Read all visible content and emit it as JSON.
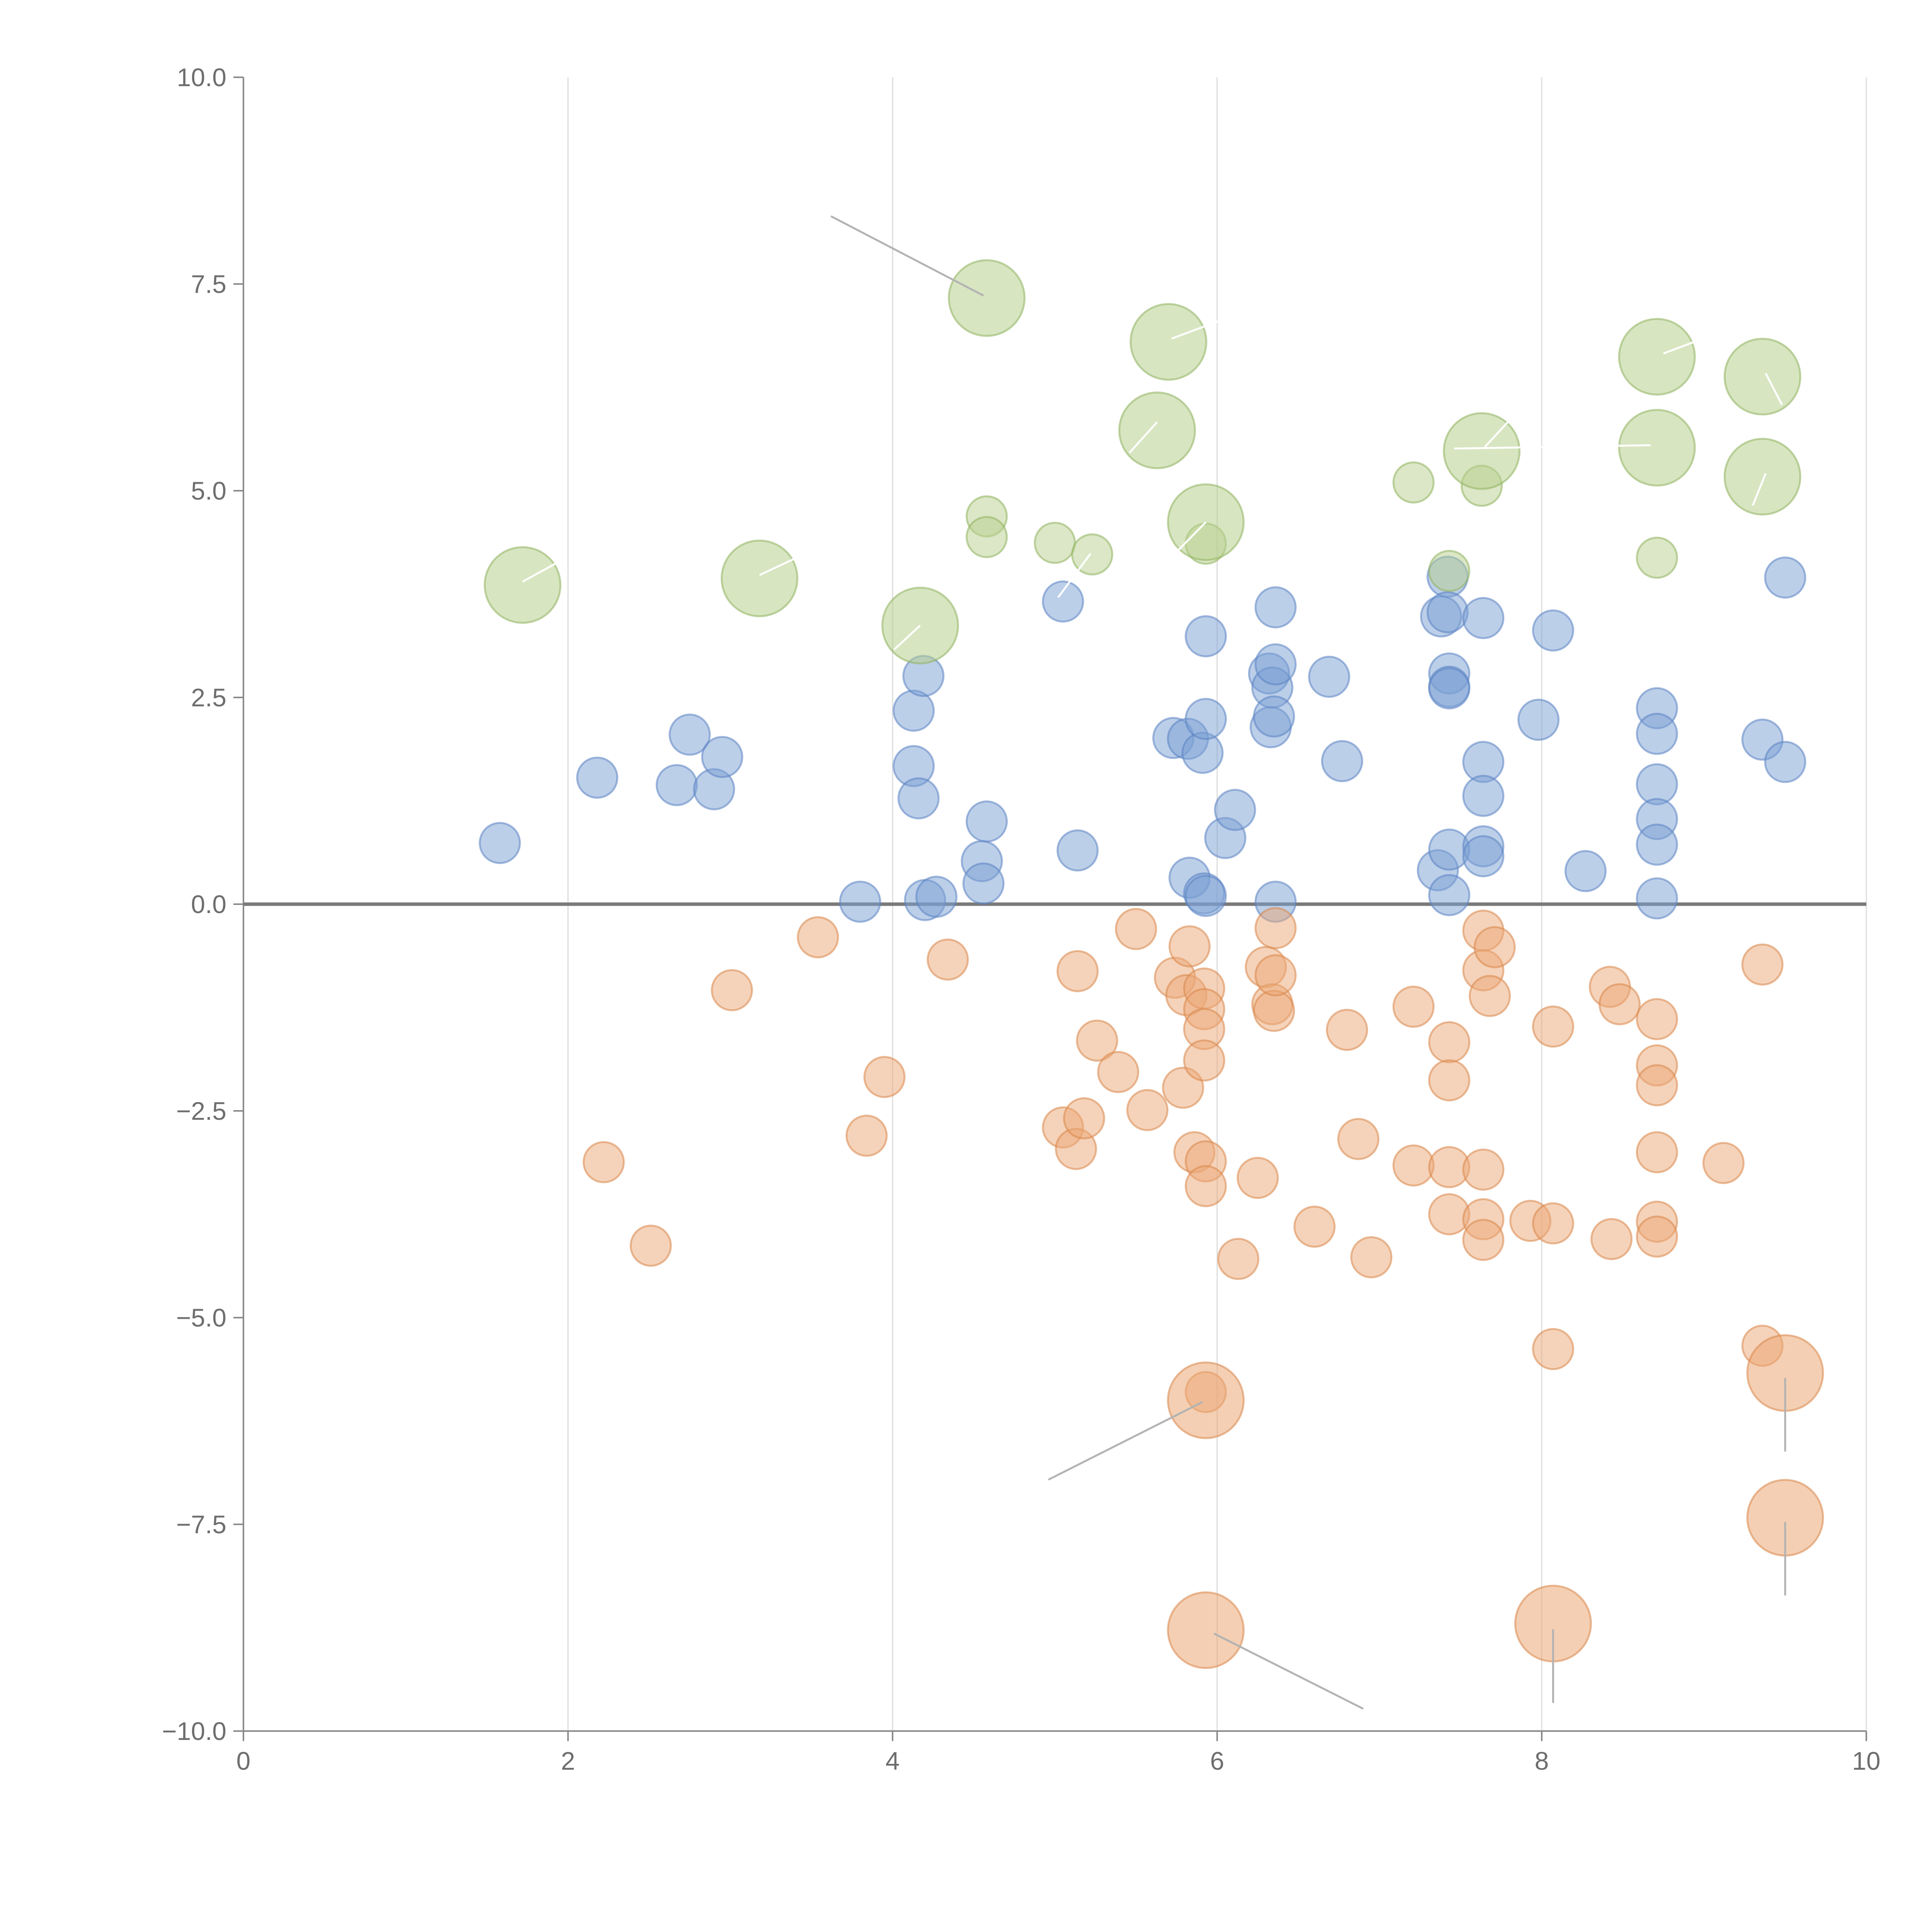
{
  "chart_data": {
    "type": "scatter",
    "title": "",
    "xlabel": "",
    "ylabel": "",
    "xlim": [
      0,
      10
    ],
    "ylim": [
      -10,
      10
    ],
    "grid": "vertical",
    "legend": "none",
    "x_ticks": [
      0,
      2,
      4,
      6,
      8,
      10
    ],
    "x_tick_labels": [
      "0",
      "2",
      "4",
      "6",
      "8",
      "10"
    ],
    "y_ticks": [
      10,
      7.5,
      5,
      2.5,
      0,
      -2.5,
      -5,
      -7.5,
      -10
    ],
    "y_tick_labels": [
      "10.0",
      "7.5",
      "5.0",
      "2.5",
      "0.0",
      "−2.5",
      "−5.0",
      "−7.5",
      "−10.0"
    ],
    "colors": {
      "blue": "#7aa0d4",
      "blue_stroke": "#5b83c2",
      "orange": "#eba775",
      "orange_stroke": "#d9864a",
      "green": "#b7d08e",
      "green_stroke": "#8fb35f",
      "leader_dark": "#b3b3b3",
      "leader_light": "#ffffff"
    },
    "series": [
      {
        "name": "blue",
        "points": [
          [
            1.58,
            0.74
          ],
          [
            2.18,
            1.53
          ],
          [
            2.67,
            1.44
          ],
          [
            2.75,
            2.05
          ],
          [
            2.9,
            1.39
          ],
          [
            2.95,
            1.78
          ],
          [
            3.8,
            0.03
          ],
          [
            4.13,
            2.34
          ],
          [
            4.13,
            1.67
          ],
          [
            4.16,
            1.28
          ],
          [
            4.19,
            2.76
          ],
          [
            4.2,
            0.05
          ],
          [
            4.27,
            0.09
          ],
          [
            4.55,
            0.52
          ],
          [
            4.56,
            0.25
          ],
          [
            4.58,
            1.0
          ],
          [
            5.05,
            3.66
          ],
          [
            5.14,
            0.65
          ],
          [
            5.73,
            2.01
          ],
          [
            5.82,
            2.0
          ],
          [
            5.83,
            0.32
          ],
          [
            5.91,
            1.83
          ],
          [
            5.92,
            0.13
          ],
          [
            5.93,
            0.1
          ],
          [
            5.93,
            3.24
          ],
          [
            5.93,
            2.24
          ],
          [
            6.05,
            0.8
          ],
          [
            6.11,
            1.14
          ],
          [
            6.32,
            2.79
          ],
          [
            6.33,
            2.14
          ],
          [
            6.34,
            2.62
          ],
          [
            6.35,
            2.27
          ],
          [
            6.36,
            2.9
          ],
          [
            6.36,
            0.03
          ],
          [
            6.36,
            3.59
          ],
          [
            6.69,
            2.75
          ],
          [
            6.77,
            1.73
          ],
          [
            7.36,
            0.41
          ],
          [
            7.38,
            3.48
          ],
          [
            7.42,
            3.96
          ],
          [
            7.42,
            3.53
          ],
          [
            7.43,
            2.79
          ],
          [
            7.43,
            2.63
          ],
          [
            7.43,
            2.61
          ],
          [
            7.43,
            0.66
          ],
          [
            7.43,
            0.11
          ],
          [
            7.64,
            3.46
          ],
          [
            7.64,
            1.72
          ],
          [
            7.64,
            1.31
          ],
          [
            7.64,
            0.7
          ],
          [
            7.64,
            0.58
          ],
          [
            7.98,
            2.23
          ],
          [
            8.07,
            3.31
          ],
          [
            8.27,
            0.4
          ],
          [
            8.71,
            2.37
          ],
          [
            8.71,
            2.06
          ],
          [
            8.71,
            1.45
          ],
          [
            8.71,
            1.03
          ],
          [
            8.71,
            0.72
          ],
          [
            8.71,
            0.07
          ],
          [
            9.36,
            1.99
          ],
          [
            9.5,
            3.95
          ],
          [
            9.5,
            1.72
          ]
        ]
      },
      {
        "name": "orange",
        "points": [
          [
            2.22,
            -3.12
          ],
          [
            2.51,
            -4.13
          ],
          [
            3.01,
            -1.04
          ],
          [
            3.54,
            -0.4
          ],
          [
            3.84,
            -2.8
          ],
          [
            3.95,
            -2.09
          ],
          [
            4.34,
            -0.67
          ],
          [
            5.05,
            -2.7
          ],
          [
            5.13,
            -2.96
          ],
          [
            5.14,
            -0.81
          ],
          [
            5.18,
            -2.59
          ],
          [
            5.26,
            -1.65
          ],
          [
            5.39,
            -2.03
          ],
          [
            5.5,
            -0.3
          ],
          [
            5.57,
            -2.49
          ],
          [
            5.74,
            -0.89
          ],
          [
            5.79,
            -2.22
          ],
          [
            5.81,
            -1.1
          ],
          [
            5.83,
            -0.51
          ],
          [
            5.86,
            -3.0
          ],
          [
            5.92,
            -1.02
          ],
          [
            5.92,
            -1.27
          ],
          [
            5.92,
            -1.51
          ],
          [
            5.92,
            -1.89
          ],
          [
            5.93,
            -3.11
          ],
          [
            5.93,
            -3.41
          ],
          [
            5.93,
            -5.9
          ],
          [
            6.13,
            -4.29
          ],
          [
            6.25,
            -3.31
          ],
          [
            6.3,
            -0.76
          ],
          [
            6.34,
            -1.21
          ],
          [
            6.35,
            -1.29
          ],
          [
            6.36,
            -0.86
          ],
          [
            6.36,
            -0.29
          ],
          [
            6.6,
            -3.9
          ],
          [
            6.8,
            -1.52
          ],
          [
            6.87,
            -2.84
          ],
          [
            6.95,
            -4.27
          ],
          [
            7.21,
            -1.24
          ],
          [
            7.21,
            -3.16
          ],
          [
            7.43,
            -1.67
          ],
          [
            7.43,
            -2.13
          ],
          [
            7.43,
            -3.18
          ],
          [
            7.43,
            -3.75
          ],
          [
            7.64,
            -0.32
          ],
          [
            7.64,
            -0.8
          ],
          [
            7.64,
            -3.21
          ],
          [
            7.64,
            -3.81
          ],
          [
            7.64,
            -4.06
          ],
          [
            7.68,
            -1.11
          ],
          [
            7.71,
            -0.52
          ],
          [
            7.93,
            -3.83
          ],
          [
            8.07,
            -1.48
          ],
          [
            8.07,
            -3.86
          ],
          [
            8.07,
            -5.38
          ],
          [
            8.42,
            -1.0
          ],
          [
            8.43,
            -4.05
          ],
          [
            8.48,
            -1.21
          ],
          [
            8.71,
            -1.39
          ],
          [
            8.71,
            -1.95
          ],
          [
            8.71,
            -2.19
          ],
          [
            8.71,
            -3.0
          ],
          [
            8.71,
            -3.84
          ],
          [
            8.71,
            -4.02
          ],
          [
            9.12,
            -3.13
          ],
          [
            9.36,
            -0.73
          ],
          [
            9.36,
            -5.34
          ]
        ]
      },
      {
        "name": "green",
        "points": [
          [
            4.58,
            4.69
          ],
          [
            4.58,
            4.44
          ],
          [
            5.0,
            4.37
          ],
          [
            5.23,
            4.23
          ],
          [
            5.93,
            4.36
          ],
          [
            7.21,
            5.1
          ],
          [
            7.43,
            4.03
          ],
          [
            7.63,
            5.06
          ],
          [
            8.71,
            4.19
          ]
        ]
      }
    ],
    "large_bubbles": [
      {
        "series": "green",
        "x": 1.72,
        "y": 3.86
      },
      {
        "series": "green",
        "x": 3.18,
        "y": 3.94
      },
      {
        "series": "green",
        "x": 4.17,
        "y": 3.37
      },
      {
        "series": "green",
        "x": 4.58,
        "y": 7.33
      },
      {
        "series": "green",
        "x": 5.63,
        "y": 5.73
      },
      {
        "series": "green",
        "x": 5.7,
        "y": 6.8
      },
      {
        "series": "green",
        "x": 5.93,
        "y": 4.62
      },
      {
        "series": "green",
        "x": 7.63,
        "y": 5.48
      },
      {
        "series": "green",
        "x": 8.71,
        "y": 6.62
      },
      {
        "series": "green",
        "x": 8.71,
        "y": 5.52
      },
      {
        "series": "green",
        "x": 9.36,
        "y": 6.38
      },
      {
        "series": "green",
        "x": 9.36,
        "y": 5.17
      },
      {
        "series": "orange",
        "x": 5.93,
        "y": -6.0
      },
      {
        "series": "orange",
        "x": 5.93,
        "y": -8.78
      },
      {
        "series": "orange",
        "x": 8.07,
        "y": -8.7
      },
      {
        "series": "orange",
        "x": 9.5,
        "y": -5.67
      },
      {
        "series": "orange",
        "x": 9.5,
        "y": -7.42
      }
    ],
    "leader_lines": [
      {
        "color": "dark",
        "from": [
          4.56,
          7.36
        ],
        "to": [
          3.62,
          8.32
        ]
      },
      {
        "color": "light",
        "from": [
          5.72,
          6.84
        ],
        "to": [
          6.02,
          7.06
        ]
      },
      {
        "color": "light",
        "from": [
          5.63,
          5.83
        ],
        "to": [
          5.46,
          5.46
        ]
      },
      {
        "color": "light",
        "from": [
          5.93,
          4.62
        ],
        "to": [
          5.76,
          4.28
        ]
      },
      {
        "color": "light",
        "from": [
          1.72,
          3.9
        ],
        "to": [
          1.97,
          4.17
        ]
      },
      {
        "color": "light",
        "from": [
          3.18,
          3.98
        ],
        "to": [
          3.42,
          4.2
        ]
      },
      {
        "color": "light",
        "from": [
          4.17,
          3.37
        ],
        "to": [
          4.01,
          3.08
        ]
      },
      {
        "color": "light",
        "from": [
          5.22,
          4.24
        ],
        "to": [
          5.02,
          3.71
        ]
      },
      {
        "color": "light",
        "from": [
          7.65,
          5.53
        ],
        "to": [
          7.8,
          5.85
        ]
      },
      {
        "color": "light",
        "from": [
          7.46,
          5.51
        ],
        "to": [
          8.67,
          5.55
        ]
      },
      {
        "color": "light",
        "from": [
          8.75,
          6.66
        ],
        "to": [
          8.98,
          6.83
        ]
      },
      {
        "color": "light",
        "from": [
          9.38,
          6.42
        ],
        "to": [
          9.48,
          6.04
        ]
      },
      {
        "color": "light",
        "from": [
          9.38,
          5.21
        ],
        "to": [
          9.3,
          4.82
        ]
      },
      {
        "color": "dark",
        "from": [
          5.91,
          -6.02
        ],
        "to": [
          4.96,
          -6.96
        ]
      },
      {
        "color": "dark",
        "from": [
          5.98,
          -8.82
        ],
        "to": [
          6.9,
          -9.73
        ]
      },
      {
        "color": "dark",
        "from": [
          8.07,
          -8.77
        ],
        "to": [
          8.07,
          -9.66
        ]
      },
      {
        "color": "dark",
        "from": [
          9.5,
          -5.73
        ],
        "to": [
          9.5,
          -6.62
        ]
      },
      {
        "color": "dark",
        "from": [
          9.5,
          -7.47
        ],
        "to": [
          9.5,
          -8.36
        ]
      }
    ]
  }
}
